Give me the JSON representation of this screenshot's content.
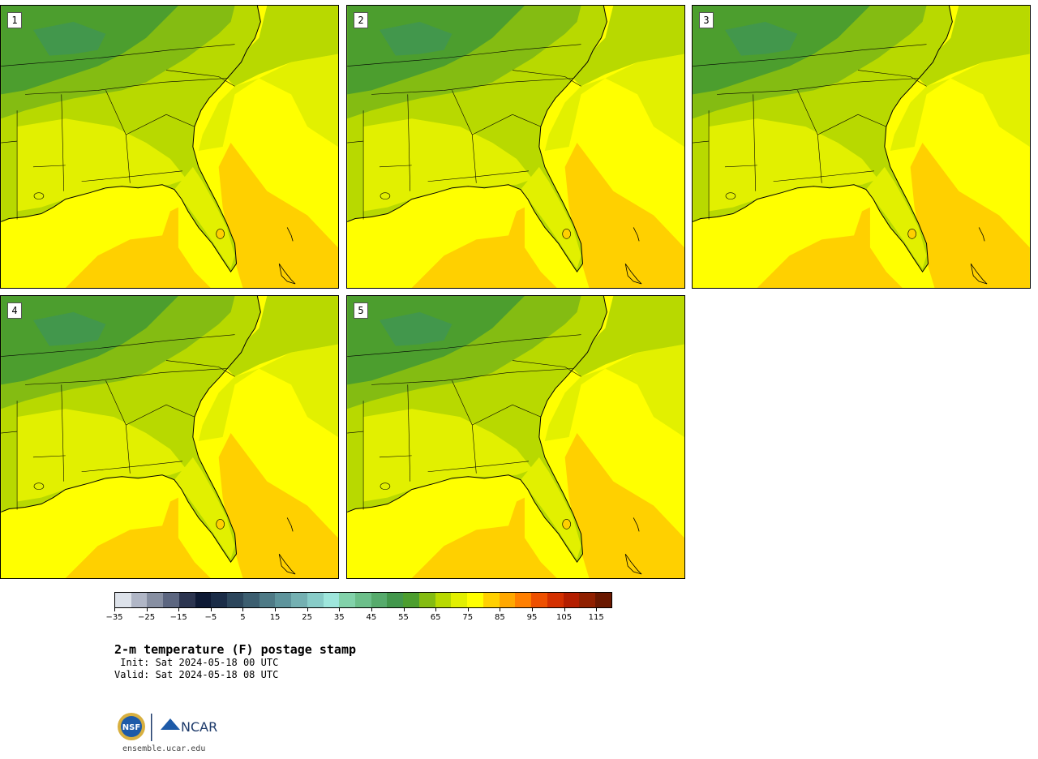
{
  "panels": [
    {
      "label": "1"
    },
    {
      "label": "2"
    },
    {
      "label": "3"
    },
    {
      "label": "4"
    },
    {
      "label": "5"
    }
  ],
  "colorbar": {
    "colors": [
      "#dde2ea",
      "#b0b6c6",
      "#878fa2",
      "#5c6680",
      "#2c3550",
      "#0e1a35",
      "#1b2d48",
      "#2c465c",
      "#3c5e70",
      "#4e7a86",
      "#5e949c",
      "#74b0b2",
      "#88ccc8",
      "#9ee6dc",
      "#82d2aa",
      "#6cbf8a",
      "#56ab6c",
      "#42974c",
      "#4c9e2e",
      "#84bc12",
      "#b8d900",
      "#e2f000",
      "#ffff00",
      "#ffd000",
      "#ffa800",
      "#ff7f00",
      "#ee5000",
      "#d43000",
      "#b41e00",
      "#902000",
      "#6a1800"
    ],
    "tick_values": [
      "−35",
      "−25",
      "−15",
      "−5",
      "5",
      "15",
      "25",
      "35",
      "45",
      "55",
      "65",
      "75",
      "85",
      "95",
      "105",
      "115"
    ]
  },
  "title": "2-m temperature (F) postage stamp",
  "init": " Init: Sat 2024-05-18 00 UTC",
  "valid": "Valid: Sat 2024-05-18 08 UTC",
  "url": "ensemble.ucar.edu",
  "logos": {
    "nsf": "NSF",
    "ncar": "NCAR"
  }
}
